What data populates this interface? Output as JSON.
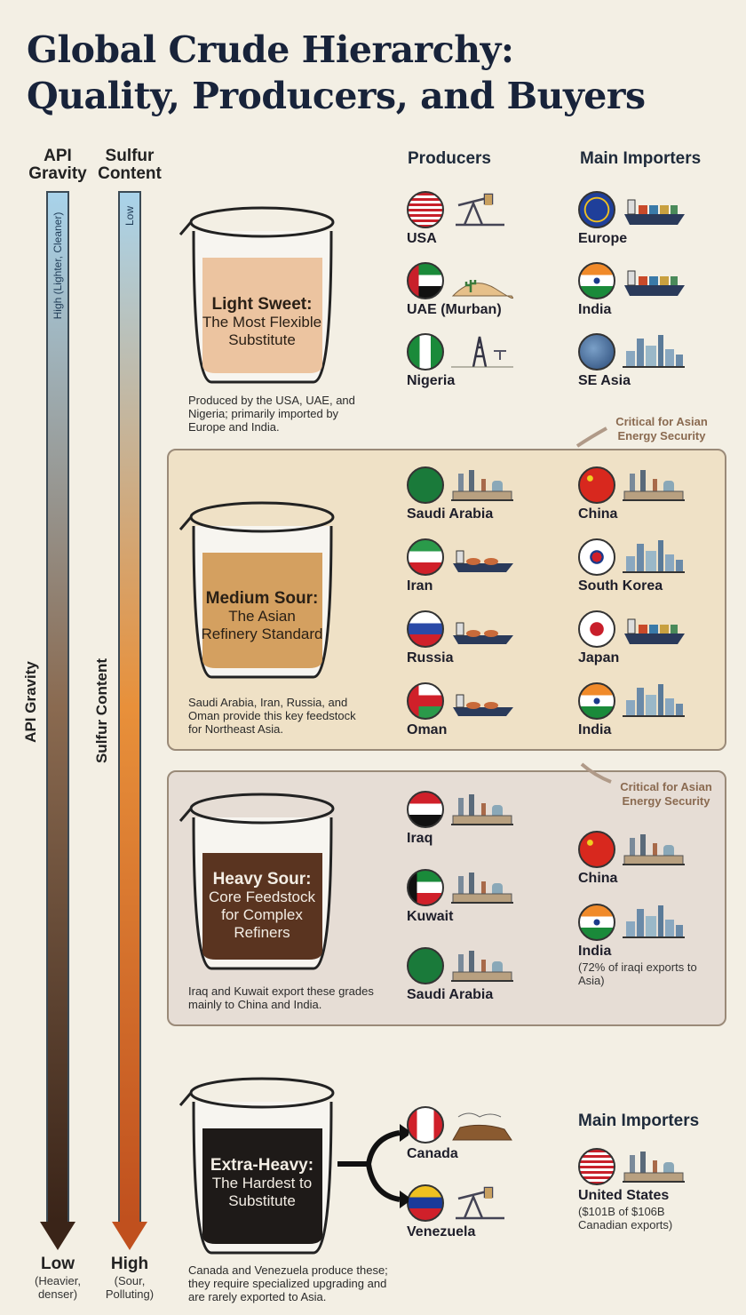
{
  "title": {
    "line1": "Global Crude Hierarchy:",
    "line2": "Quality, Producers, and Buyers"
  },
  "axes": {
    "api": {
      "head_line1": "API",
      "head_line2": "Gravity",
      "top_label": "High (Lighter, Cleaner)",
      "side_label": "API Gravity",
      "bottom_main": "Low",
      "bottom_sub": "(Heavier, denser)",
      "gradient": [
        "#a9d3ea",
        "#8a6a50",
        "#3a2418"
      ]
    },
    "sulfur": {
      "head_line1": "Sulfur",
      "head_line2": "Content",
      "top_label": "Low",
      "side_label": "Sulfur Content",
      "bottom_main": "High",
      "bottom_sub": "(Sour, Polluting)",
      "gradient": [
        "#a9d3ea",
        "#e8903a",
        "#c0501e"
      ]
    }
  },
  "columns": {
    "producers": "Producers",
    "importers": "Main Importers"
  },
  "tiers": [
    {
      "name": "Light Sweet:",
      "subtitle_line1": "The Most Flexible",
      "subtitle_line2": "Substitute",
      "liquid_color": "#ecc4a0",
      "description": "Produced by the USA, UAE, and Nigeria; primarily imported by Europe and India.",
      "producers": [
        {
          "label": "USA",
          "flag": "usa-flag-icon",
          "icon": "oil-pump-icon"
        },
        {
          "label": "UAE (Murban)",
          "flag": "uae-flag-icon",
          "icon": "desert-icon"
        },
        {
          "label": "Nigeria",
          "flag": "nigeria-flag-icon",
          "icon": "oil-derrick-icon"
        }
      ],
      "importers": [
        {
          "label": "Europe",
          "flag": "eu-flag-icon",
          "icon": "cargo-ship-icon"
        },
        {
          "label": "India",
          "flag": "india-flag-icon",
          "icon": "cargo-ship-icon"
        },
        {
          "label": "SE Asia",
          "flag": "globe-icon",
          "icon": "city-skyline-icon"
        }
      ],
      "callout": "Critical for Asian Energy Security"
    },
    {
      "name": "Medium Sour:",
      "subtitle_line1": "The Asian",
      "subtitle_line2": "Refinery Standard",
      "liquid_color": "#d4a060",
      "description": "Saudi Arabia, Iran, Russia, and Oman provide this key feedstock for Northeast Asia.",
      "producers": [
        {
          "label": "Saudi Arabia",
          "flag": "saudi-flag-icon",
          "icon": "refinery-icon"
        },
        {
          "label": "Iran",
          "flag": "iran-flag-icon",
          "icon": "tanker-icon"
        },
        {
          "label": "Russia",
          "flag": "russia-flag-icon",
          "icon": "tanker-icon"
        },
        {
          "label": "Oman",
          "flag": "oman-flag-icon",
          "icon": "tanker-icon"
        }
      ],
      "importers": [
        {
          "label": "China",
          "flag": "china-flag-icon",
          "icon": "refinery-icon"
        },
        {
          "label": "South Korea",
          "flag": "korea-flag-icon",
          "icon": "city-skyline-icon"
        },
        {
          "label": "Japan",
          "flag": "japan-flag-icon",
          "icon": "cargo-ship-icon"
        },
        {
          "label": "India",
          "flag": "india-flag-icon",
          "icon": "city-skyline-icon"
        }
      ],
      "callout": "Critical for Asian Energy Security"
    },
    {
      "name": "Heavy Sour:",
      "subtitle_line1": "Core Feedstock",
      "subtitle_line2": "for Complex",
      "subtitle_line3": "Refiners",
      "liquid_color": "#5a3420",
      "description": "Iraq and Kuwait export these grades mainly to China and India.",
      "producers": [
        {
          "label": "Iraq",
          "flag": "iraq-flag-icon",
          "icon": "refinery-icon"
        },
        {
          "label": "Kuwait",
          "flag": "kuwait-flag-icon",
          "icon": "refinery-icon"
        },
        {
          "label": "Saudi Arabia",
          "flag": "saudi-flag-icon",
          "icon": "refinery-icon"
        }
      ],
      "importers": [
        {
          "label": "China",
          "flag": "china-flag-icon",
          "icon": "refinery-icon"
        },
        {
          "label": "India",
          "flag": "india-flag-icon",
          "icon": "city-skyline-icon",
          "note": "(72% of iraqi exports to Asia)"
        }
      ]
    },
    {
      "name": "Extra-Heavy:",
      "subtitle_line1": "The Hardest to",
      "subtitle_line2": "Substitute",
      "liquid_color": "#1e1a18",
      "description": "Canada and Venezuela produce these; they require specialized upgrading and are rarely exported to Asia.",
      "producers": [
        {
          "label": "Canada",
          "flag": "canada-flag-icon",
          "icon": "oil-sands-icon"
        },
        {
          "label": "Venezuela",
          "flag": "venezuela-flag-icon",
          "icon": "oil-pump-icon"
        }
      ],
      "importers_header": "Main Importers",
      "importers": [
        {
          "label": "United States",
          "flag": "usa-flag-icon",
          "icon": "refinery-icon",
          "note": "($101B of $106B Canadian exports)"
        }
      ]
    }
  ]
}
